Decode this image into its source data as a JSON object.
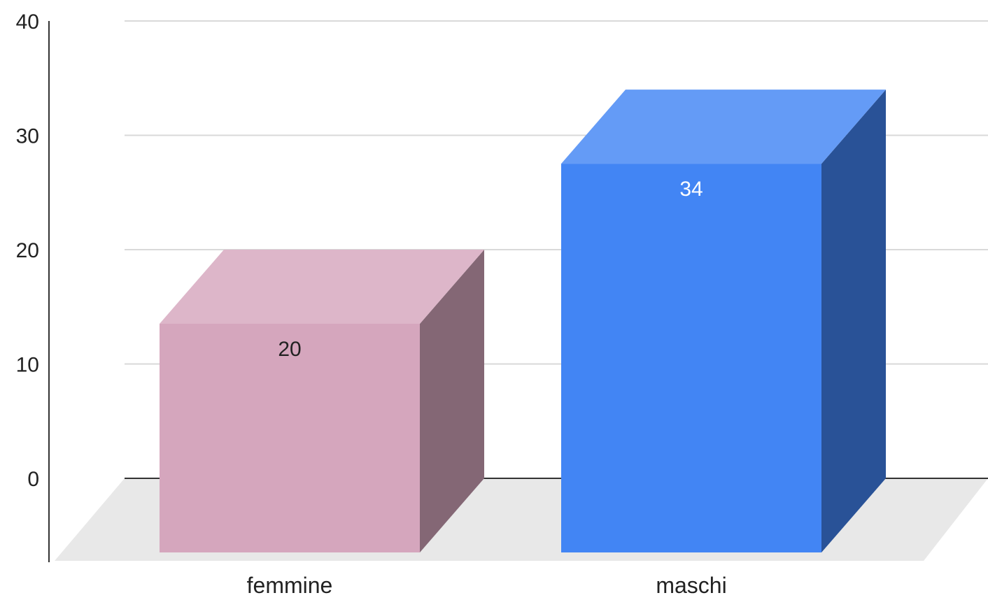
{
  "chart_data": {
    "type": "bar",
    "subtype": "3d-column",
    "categories": [
      "femmine",
      "maschi"
    ],
    "values": [
      20,
      34
    ],
    "colors": [
      "#d5a6bd",
      "#4285f4"
    ],
    "data_labels": [
      "20",
      "34"
    ],
    "data_label_colors": [
      "#222222",
      "#ffffff"
    ],
    "ylim": [
      0,
      40
    ],
    "yticks": [
      0,
      10,
      20,
      30,
      40
    ],
    "grid": true,
    "legend": "none"
  }
}
